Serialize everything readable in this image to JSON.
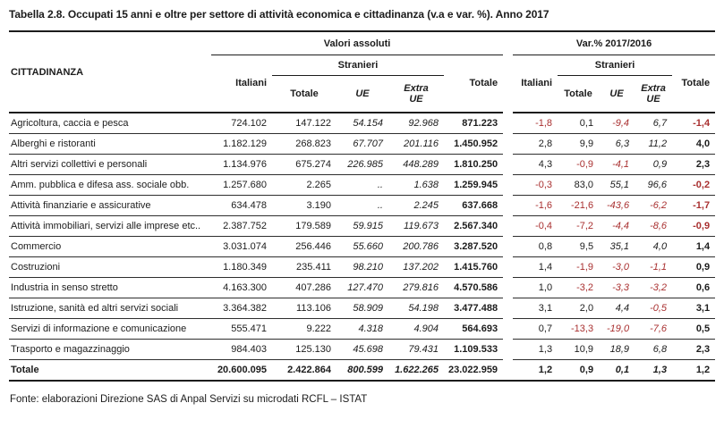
{
  "title": "Tabella 2.8. Occupati 15 anni e oltre per settore di attività economica e cittadinanza (v.a e var. %). Anno 2017",
  "source": "Fonte: elaborazioni Direzione SAS di Anpal Servizi su microdati RCFL – ISTAT",
  "colors": {
    "text": "#1c1c1c",
    "row_line": "#2e2e2e",
    "negative_value": "#a93030"
  },
  "table": {
    "row_header": "CITTADINANZA",
    "col_groups": {
      "absolute_label": "Valori assoluti",
      "variation_label": "Var.% 2017/2016"
    },
    "sub_headers": {
      "italians": "Italiani",
      "foreigners": "Stranieri",
      "foreigners_total": "Totale",
      "eu": "UE",
      "extra_eu": "Extra UE",
      "total": "Totale"
    },
    "rows": [
      {
        "label": "Agricoltura, caccia e pesca",
        "absolute": [
          "724.102",
          "147.122",
          "54.154",
          "92.968",
          "871.223"
        ],
        "variation": [
          "-1,8",
          "0,1",
          "-9,4",
          "6,7",
          "-1,4"
        ]
      },
      {
        "label": "Alberghi e ristoranti",
        "absolute": [
          "1.182.129",
          "268.823",
          "67.707",
          "201.116",
          "1.450.952"
        ],
        "variation": [
          "2,8",
          "9,9",
          "6,3",
          "11,2",
          "4,0"
        ]
      },
      {
        "label": "Altri servizi collettivi e personali",
        "absolute": [
          "1.134.976",
          "675.274",
          "226.985",
          "448.289",
          "1.810.250"
        ],
        "variation": [
          "4,3",
          "-0,9",
          "-4,1",
          "0,9",
          "2,3"
        ]
      },
      {
        "label": "Amm. pubblica e difesa ass. sociale obb.",
        "absolute": [
          "1.257.680",
          "2.265",
          "..",
          "1.638",
          "1.259.945"
        ],
        "variation": [
          "-0,3",
          "83,0",
          "55,1",
          "96,6",
          "-0,2"
        ]
      },
      {
        "label": "Attività finanziarie e assicurative",
        "absolute": [
          "634.478",
          "3.190",
          "..",
          "2.245",
          "637.668"
        ],
        "variation": [
          "-1,6",
          "-21,6",
          "-43,6",
          "-6,2",
          "-1,7"
        ]
      },
      {
        "label": "Attività immobiliari, servizi alle imprese etc..",
        "absolute": [
          "2.387.752",
          "179.589",
          "59.915",
          "119.673",
          "2.567.340"
        ],
        "variation": [
          "-0,4",
          "-7,2",
          "-4,4",
          "-8,6",
          "-0,9"
        ]
      },
      {
        "label": "Commercio",
        "absolute": [
          "3.031.074",
          "256.446",
          "55.660",
          "200.786",
          "3.287.520"
        ],
        "variation": [
          "0,8",
          "9,5",
          "35,1",
          "4,0",
          "1,4"
        ]
      },
      {
        "label": "Costruzioni",
        "absolute": [
          "1.180.349",
          "235.411",
          "98.210",
          "137.202",
          "1.415.760"
        ],
        "variation": [
          "1,4",
          "-1,9",
          "-3,0",
          "-1,1",
          "0,9"
        ]
      },
      {
        "label": "Industria in senso stretto",
        "absolute": [
          "4.163.300",
          "407.286",
          "127.470",
          "279.816",
          "4.570.586"
        ],
        "variation": [
          "1,0",
          "-3,2",
          "-3,3",
          "-3,2",
          "0,6"
        ]
      },
      {
        "label": "Istruzione, sanità ed altri servizi sociali",
        "absolute": [
          "3.364.382",
          "113.106",
          "58.909",
          "54.198",
          "3.477.488"
        ],
        "variation": [
          "3,1",
          "2,0",
          "4,4",
          "-0,5",
          "3,1"
        ]
      },
      {
        "label": "Servizi di informazione e comunicazione",
        "absolute": [
          "555.471",
          "9.222",
          "4.318",
          "4.904",
          "564.693"
        ],
        "variation": [
          "0,7",
          "-13,3",
          "-19,0",
          "-7,6",
          "0,5"
        ]
      },
      {
        "label": "Trasporto e magazzinaggio",
        "absolute": [
          "984.403",
          "125.130",
          "45.698",
          "79.431",
          "1.109.533"
        ],
        "variation": [
          "1,3",
          "10,9",
          "18,9",
          "6,8",
          "2,3"
        ]
      }
    ],
    "total_row": {
      "label": "Totale",
      "absolute": [
        "20.600.095",
        "2.422.864",
        "800.599",
        "1.622.265",
        "23.022.959"
      ],
      "variation": [
        "1,2",
        "0,9",
        "0,1",
        "1,3",
        "1,2"
      ]
    }
  }
}
